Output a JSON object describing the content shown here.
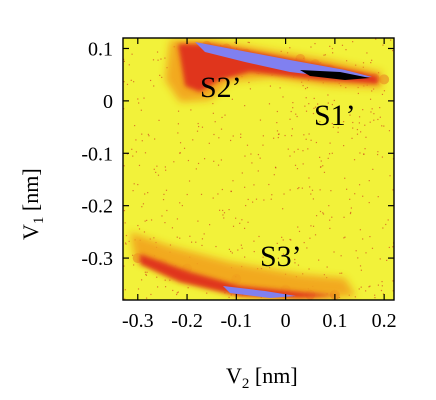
{
  "chart_data": {
    "type": "heatmap",
    "title": "",
    "xlabel": {
      "main": "V",
      "sub": "2",
      "unit": " [nm]"
    },
    "ylabel": {
      "main": "V",
      "sub": "1",
      "unit": " [nm]"
    },
    "xlim": [
      -0.33,
      0.22
    ],
    "ylim": [
      -0.38,
      0.12
    ],
    "x_ticks": [
      {
        "value": -0.3,
        "label": "-0.3"
      },
      {
        "value": -0.2,
        "label": "-0.2"
      },
      {
        "value": -0.1,
        "label": "-0.1"
      },
      {
        "value": 0,
        "label": "0"
      },
      {
        "value": 0.1,
        "label": "0.1"
      },
      {
        "value": 0.2,
        "label": "0.2"
      }
    ],
    "y_ticks": [
      {
        "value": 0.1,
        "label": "0.1"
      },
      {
        "value": 0,
        "label": "0"
      },
      {
        "value": -0.1,
        "label": "-0.1"
      },
      {
        "value": -0.2,
        "label": "-0.2"
      },
      {
        "value": -0.3,
        "label": "-0.3"
      }
    ],
    "colors": {
      "background": "#f2f23a",
      "low": "#f2a21a",
      "medium": "#e0341a",
      "high": "#c81818",
      "very_high": "#8080f0",
      "peak": "#000000"
    },
    "regions": [
      {
        "label": "S1’",
        "label_pos": [
          0.12,
          -0.01
        ],
        "points": [
          [
            0.03,
            0.08
          ],
          [
            0.06,
            0.07
          ],
          [
            0.09,
            0.06
          ],
          [
            0.12,
            0.052
          ],
          [
            0.15,
            0.047
          ],
          [
            0.18,
            0.043
          ],
          [
            0.2,
            0.041
          ]
        ],
        "density": "high"
      },
      {
        "label": "S2’",
        "label_pos": [
          -0.16,
          0.02
        ],
        "points": [
          [
            -0.2,
            0.1
          ],
          [
            -0.16,
            0.105
          ],
          [
            -0.12,
            0.1
          ],
          [
            -0.08,
            0.09
          ],
          [
            -0.04,
            0.08
          ],
          [
            0,
            0.07
          ],
          [
            -0.15,
            0.06
          ]
        ],
        "density": "high"
      },
      {
        "label": "S3’",
        "label_pos": [
          -0.04,
          -0.3
        ],
        "points": [
          [
            -0.3,
            -0.3
          ],
          [
            -0.2,
            -0.32
          ],
          [
            -0.1,
            -0.34
          ],
          [
            0,
            -0.36
          ],
          [
            0.05,
            -0.37
          ],
          [
            0.1,
            -0.37
          ],
          [
            -0.25,
            -0.31
          ]
        ],
        "density": "medium"
      }
    ]
  }
}
